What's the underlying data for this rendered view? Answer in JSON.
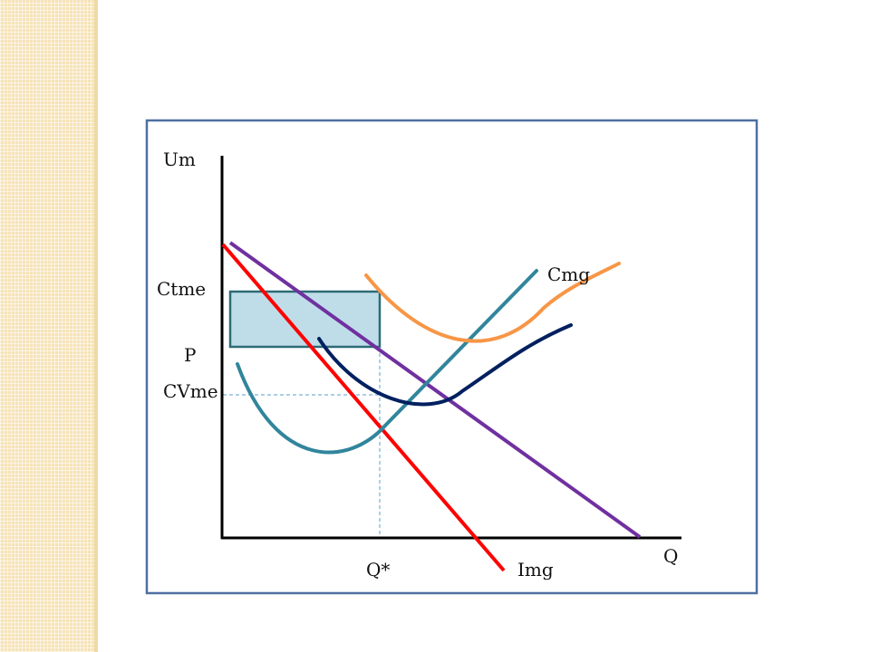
{
  "labels": {
    "y_axis": "Um",
    "x_axis": "Q",
    "ctme": "Ctme",
    "p": "P",
    "cvme": "CVme",
    "q_star": "Q*",
    "cmg": "Cmg",
    "img": "Img"
  },
  "colors": {
    "demand": "#7030a0",
    "img": "#ff0000",
    "cmg": "#31859c",
    "ctme": "#f79646",
    "cvme": "#002060",
    "rect_fill": "#bfdde9",
    "rect_stroke": "#2d6b76",
    "frame": "#4f6fa0",
    "guide": "#5a9fcc"
  }
}
